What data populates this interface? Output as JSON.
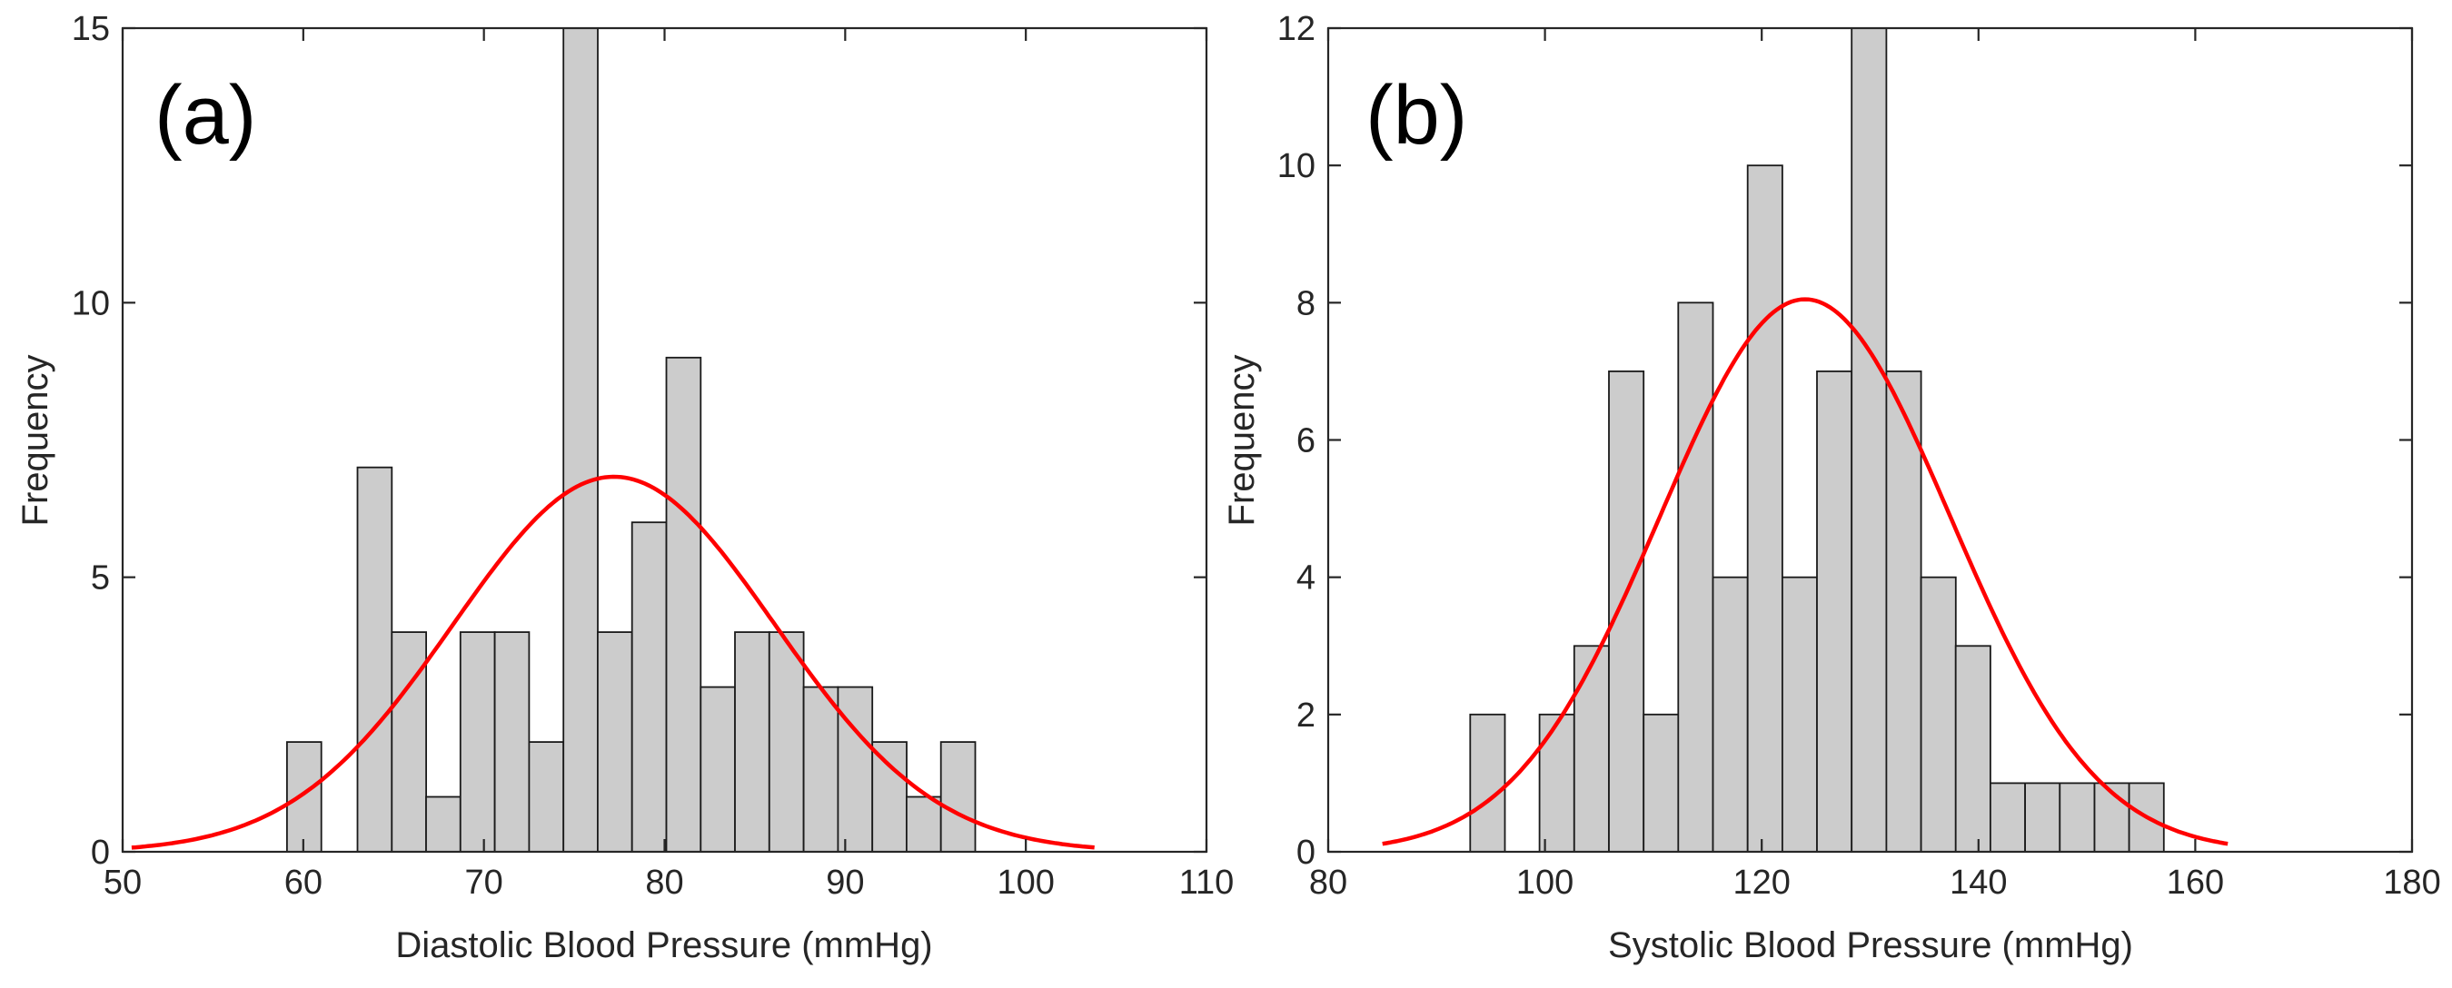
{
  "chart_data": [
    {
      "type": "bar",
      "panel_label": "(a)",
      "title": "",
      "xlabel": "Diastolic Blood Pressure (mmHg)",
      "ylabel": "Frequency",
      "xlim": [
        50,
        110
      ],
      "ylim": [
        0,
        15
      ],
      "xticks": [
        50,
        60,
        70,
        80,
        90,
        100,
        110
      ],
      "yticks": [
        0,
        5,
        10,
        15
      ],
      "bin_edges": [
        59.1,
        61.0,
        63.0,
        64.9,
        66.8,
        68.7,
        70.6,
        72.5,
        74.4,
        76.3,
        78.2,
        80.1,
        82.0,
        83.9,
        85.8,
        87.7,
        89.6,
        91.5,
        93.4,
        95.3,
        97.2
      ],
      "values": [
        2,
        0,
        7,
        4,
        1,
        4,
        4,
        2,
        15,
        4,
        6,
        9,
        3,
        4,
        4,
        3,
        3,
        2,
        1,
        2
      ],
      "fit": {
        "type": "normal",
        "mean": 77.2,
        "sd": 8.9,
        "peak": 6.83,
        "x_range": [
          50.5,
          103.8
        ]
      },
      "colors": {
        "bar_fill": "#cccccc",
        "bar_edge": "#1a1a1a",
        "fit_line": "#ff0000"
      }
    },
    {
      "type": "bar",
      "panel_label": "(b)",
      "title": "",
      "xlabel": "Systolic Blood Pressure (mmHg)",
      "ylabel": "Frequency",
      "xlim": [
        80,
        180
      ],
      "ylim": [
        0,
        12
      ],
      "xticks": [
        80,
        100,
        120,
        140,
        160,
        180
      ],
      "yticks": [
        0,
        2,
        4,
        6,
        8,
        10,
        12
      ],
      "bin_edges": [
        93.1,
        96.3,
        99.5,
        102.7,
        105.9,
        109.1,
        112.3,
        115.5,
        118.7,
        121.9,
        125.1,
        128.3,
        131.5,
        134.7,
        137.9,
        141.1,
        144.3,
        147.5,
        150.7,
        153.9,
        157.1,
        160.3
      ],
      "values": [
        2,
        0,
        2,
        3,
        7,
        2,
        8,
        4,
        10,
        4,
        7,
        12,
        7,
        4,
        3,
        1,
        1,
        1,
        1,
        1,
        0
      ],
      "fit": {
        "type": "normal",
        "mean": 124.0,
        "sd": 13.4,
        "peak": 8.05,
        "x_range": [
          85,
          163
        ]
      },
      "colors": {
        "bar_fill": "#cccccc",
        "bar_edge": "#1a1a1a",
        "fit_line": "#ff0000"
      }
    }
  ]
}
